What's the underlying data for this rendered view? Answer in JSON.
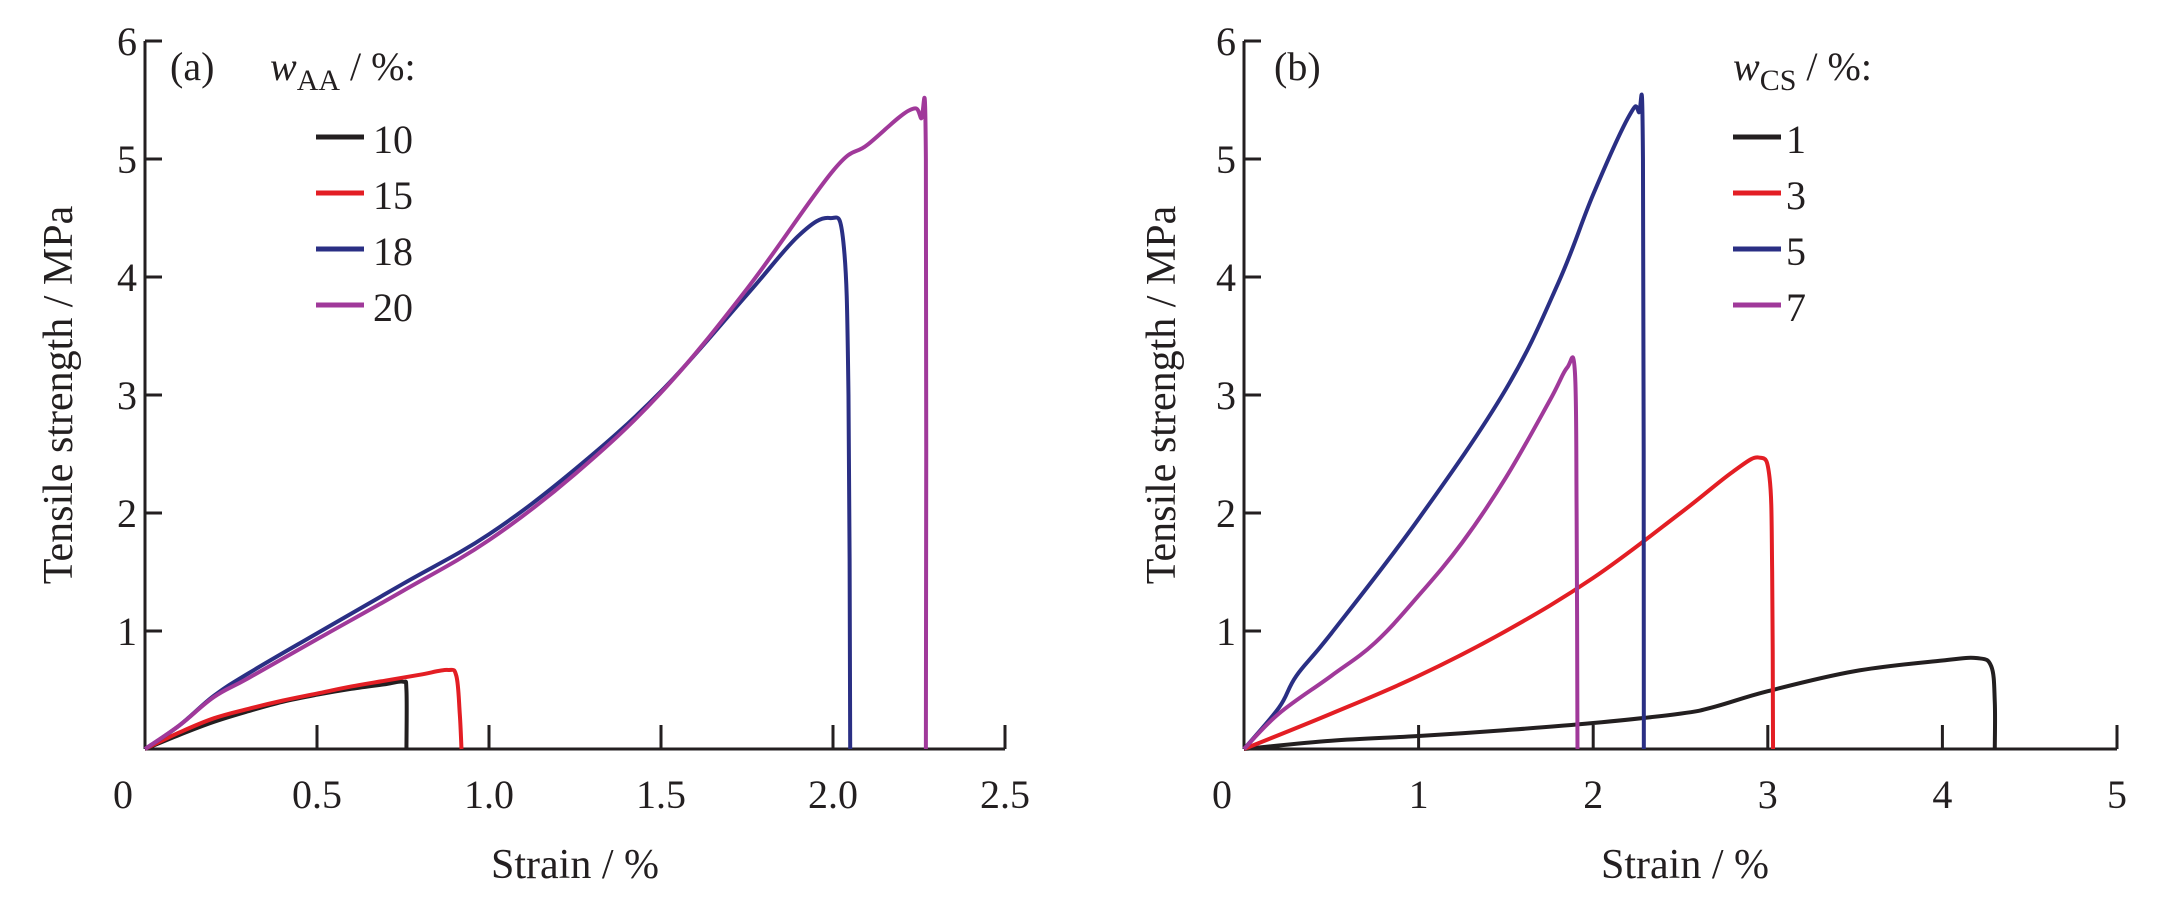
{
  "chart_data": [
    {
      "type": "line",
      "panel_label": "(a)",
      "xlabel": "Strain / %",
      "ylabel": "Tensile strength / MPa",
      "xlim": [
        0,
        2.5
      ],
      "ylim": [
        0,
        6
      ],
      "xticks": [
        "0",
        "0.5",
        "1.0",
        "1.5",
        "2.0",
        "2.5"
      ],
      "xtick_values": [
        0,
        0.5,
        1.0,
        1.5,
        2.0,
        2.5
      ],
      "yticks": [
        "1",
        "2",
        "3",
        "4",
        "5",
        "6"
      ],
      "ytick_values": [
        1,
        2,
        3,
        4,
        5,
        6
      ],
      "grid": false,
      "legend": {
        "title_var": "w",
        "title_sub": "AA",
        "title_suffix": " / %:",
        "placement": "top-left"
      },
      "series": [
        {
          "name": "10",
          "color": "#231f20",
          "x": [
            0,
            0.1,
            0.2,
            0.3,
            0.4,
            0.5,
            0.6,
            0.7,
            0.75,
            0.76,
            0.76
          ],
          "y": [
            0,
            0.12,
            0.23,
            0.32,
            0.4,
            0.46,
            0.51,
            0.55,
            0.57,
            0.5,
            0
          ]
        },
        {
          "name": "15",
          "color": "#e31e24",
          "x": [
            0,
            0.1,
            0.2,
            0.3,
            0.4,
            0.5,
            0.6,
            0.7,
            0.8,
            0.88,
            0.905,
            0.915,
            0.92
          ],
          "y": [
            0,
            0.14,
            0.26,
            0.34,
            0.41,
            0.47,
            0.53,
            0.58,
            0.63,
            0.67,
            0.62,
            0.3,
            0
          ]
        },
        {
          "name": "18",
          "color": "#2a2f84",
          "x": [
            0,
            0.1,
            0.2,
            0.3,
            0.5,
            0.75,
            1.0,
            1.25,
            1.5,
            1.75,
            1.9,
            1.99,
            2.03,
            2.045,
            2.05
          ],
          "y": [
            0,
            0.2,
            0.45,
            0.64,
            0.98,
            1.4,
            1.82,
            2.37,
            3.03,
            3.85,
            4.35,
            4.5,
            4.3,
            3.0,
            0
          ]
        },
        {
          "name": "20",
          "color": "#a0399a",
          "x": [
            0,
            0.1,
            0.2,
            0.3,
            0.5,
            0.75,
            1.0,
            1.25,
            1.5,
            1.75,
            2.0,
            2.1,
            2.22,
            2.255,
            2.27,
            2.27
          ],
          "y": [
            0,
            0.2,
            0.44,
            0.6,
            0.93,
            1.34,
            1.77,
            2.33,
            3.02,
            3.9,
            4.9,
            5.12,
            5.41,
            5.35,
            5.0,
            0
          ]
        }
      ]
    },
    {
      "type": "line",
      "panel_label": "(b)",
      "xlabel": "Strain / %",
      "ylabel": "Tensile strength / MPa",
      "xlim": [
        0,
        5
      ],
      "ylim": [
        0,
        6
      ],
      "xticks": [
        "0",
        "1",
        "2",
        "3",
        "4",
        "5"
      ],
      "xtick_values": [
        0,
        1,
        2,
        3,
        4,
        5
      ],
      "yticks": [
        "1",
        "2",
        "3",
        "4",
        "5",
        "6"
      ],
      "ytick_values": [
        1,
        2,
        3,
        4,
        5,
        6
      ],
      "grid": false,
      "legend": {
        "title_var": "w",
        "title_sub": "CS",
        "title_suffix": " / %:",
        "placement": "top-right"
      },
      "series": [
        {
          "name": "1",
          "color": "#231f20",
          "x": [
            0,
            0.5,
            1,
            1.5,
            2,
            2.5,
            2.7,
            3,
            3.5,
            4,
            4.2,
            4.28,
            4.3,
            4.3
          ],
          "y": [
            0,
            0.07,
            0.11,
            0.16,
            0.22,
            0.3,
            0.36,
            0.49,
            0.66,
            0.75,
            0.77,
            0.7,
            0.4,
            0
          ]
        },
        {
          "name": "3",
          "color": "#e31e24",
          "x": [
            0,
            0.5,
            1,
            1.5,
            2,
            2.5,
            2.8,
            2.95,
            3.01,
            3.025,
            3.03
          ],
          "y": [
            0,
            0.3,
            0.62,
            1.0,
            1.45,
            2.0,
            2.35,
            2.47,
            2.3,
            1.5,
            0
          ]
        },
        {
          "name": "5",
          "color": "#2a2f84",
          "x": [
            0,
            0.2,
            0.3,
            0.5,
            1.0,
            1.5,
            1.8,
            2.0,
            2.2,
            2.26,
            2.285,
            2.29
          ],
          "y": [
            0,
            0.35,
            0.62,
            0.98,
            1.95,
            3.05,
            3.95,
            4.7,
            5.35,
            5.4,
            5.0,
            0
          ]
        },
        {
          "name": "7",
          "color": "#a0399a",
          "x": [
            0,
            0.2,
            0.5,
            0.75,
            1,
            1.25,
            1.5,
            1.75,
            1.85,
            1.895,
            1.905,
            1.91
          ],
          "y": [
            0,
            0.3,
            0.62,
            0.9,
            1.3,
            1.75,
            2.3,
            2.95,
            3.23,
            3.2,
            2.0,
            0
          ]
        }
      ]
    }
  ]
}
